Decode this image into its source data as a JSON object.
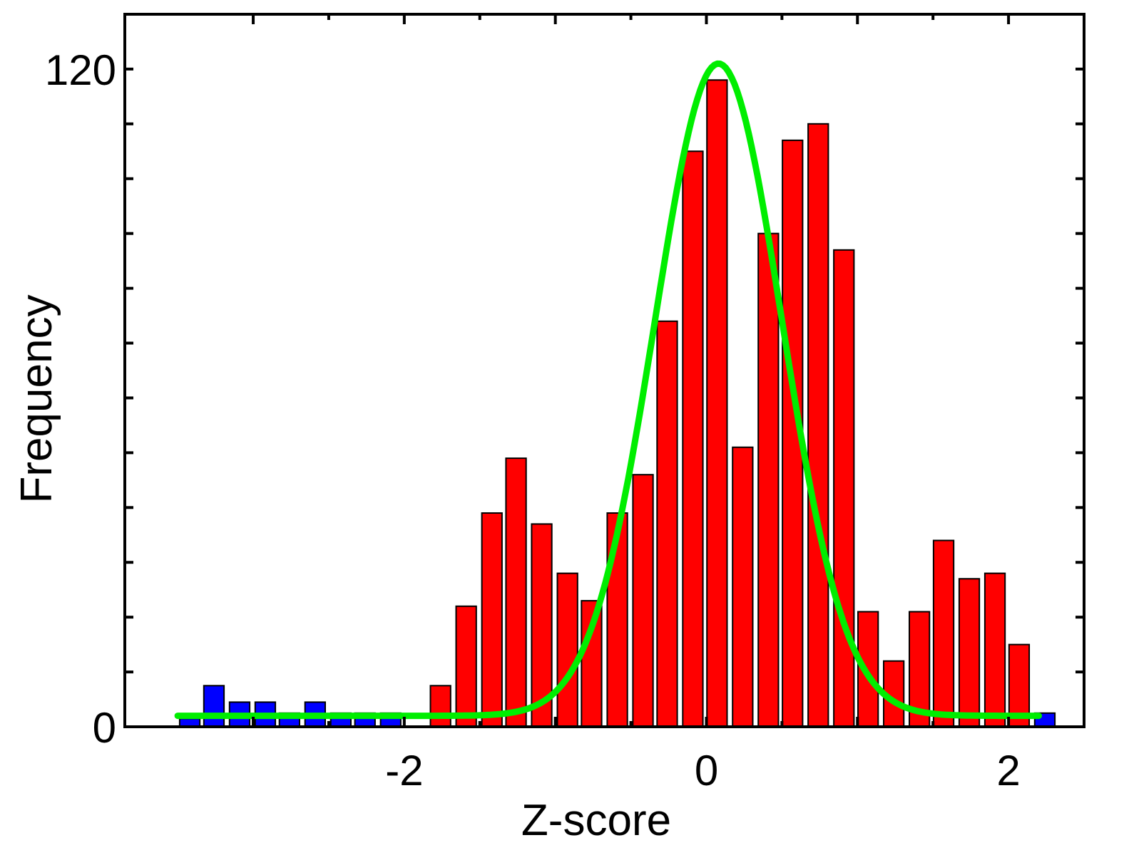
{
  "chart_data": {
    "type": "bar",
    "xlabel": "Z-score",
    "ylabel": "Frequency",
    "xlim": [
      -3.85,
      2.5
    ],
    "ylim": [
      0,
      130
    ],
    "x_ticks": [
      {
        "value": -2,
        "label": "-2"
      },
      {
        "value": 0,
        "label": "0"
      },
      {
        "value": 2,
        "label": "2"
      }
    ],
    "y_ticks": [
      {
        "value": 0,
        "label": "0"
      },
      {
        "value": 120,
        "label": "120"
      }
    ],
    "y_minor_ticks": [
      10,
      20,
      30,
      40,
      50,
      60,
      70,
      80,
      90,
      100,
      110
    ],
    "bin_width": 0.167,
    "series": [
      {
        "name": "",
        "color": "#0000ff",
        "x": [
          -3.42,
          -3.26,
          -3.09,
          -2.92,
          -2.76,
          -2.59,
          -2.42,
          -2.26,
          -2.09
        ],
        "values": [
          1.5,
          7.5,
          4.5,
          4.5,
          2.5,
          4.5,
          2.5,
          2.5,
          2.5
        ]
      },
      {
        "name": "",
        "color": "#ff0000",
        "x": [
          -1.76,
          -1.59,
          -1.42,
          -1.26,
          -1.09,
          -0.92,
          -0.76,
          -0.59,
          -0.42,
          -0.26,
          -0.09,
          0.07,
          0.24,
          0.41,
          0.57,
          0.74,
          0.91,
          1.07,
          1.24,
          1.41,
          1.57,
          1.74,
          1.91,
          2.07
        ],
        "values": [
          7.5,
          22,
          39,
          49,
          37,
          28,
          23,
          39,
          46,
          74,
          105,
          118,
          51,
          90,
          107,
          110,
          87,
          21,
          12,
          21,
          34,
          27,
          28,
          15
        ]
      },
      {
        "name": "",
        "color": "#0000ff",
        "x": [
          2.24
        ],
        "values": [
          2.5
        ]
      }
    ],
    "fit_curve": {
      "type": "gaussian",
      "color": "#00ee00",
      "mean": 0.08,
      "sigma": 0.42,
      "peak": 121,
      "baseline": 2,
      "x_range": [
        -3.5,
        2.2
      ]
    },
    "grid": false,
    "legend": "none"
  }
}
